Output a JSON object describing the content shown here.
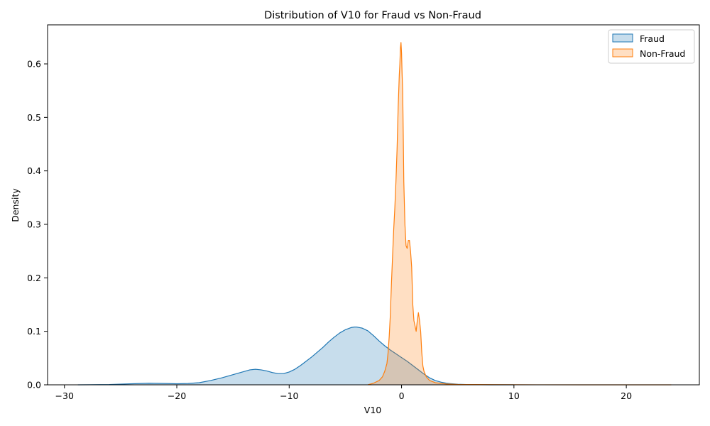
{
  "chart_data": {
    "type": "area",
    "title": "Distribution of V10 for Fraud vs Non-Fraud",
    "xlabel": "V10",
    "ylabel": "Density",
    "xlim": [
      -31.5,
      26.5
    ],
    "ylim": [
      0,
      0.673
    ],
    "xticks": [
      -30,
      -20,
      -10,
      0,
      10,
      20
    ],
    "yticks": [
      0.0,
      0.1,
      0.2,
      0.3,
      0.4,
      0.5,
      0.6
    ],
    "legend_position": "top-right",
    "grid": false,
    "series": [
      {
        "name": "Fraud",
        "color": "#1f77b4",
        "x": [
          -28.8,
          -26,
          -24,
          -22.5,
          -21,
          -20,
          -19,
          -18,
          -17,
          -16,
          -15,
          -14,
          -13.5,
          -13,
          -12.5,
          -12,
          -11.5,
          -11,
          -10.5,
          -10,
          -9.5,
          -9,
          -8.5,
          -8,
          -7.5,
          -7,
          -6.5,
          -6,
          -5.5,
          -5,
          -4.5,
          -4.2,
          -4,
          -3.5,
          -3,
          -2.5,
          -2,
          -1.5,
          -1,
          -0.5,
          0,
          0.5,
          1,
          1.5,
          2,
          2.5,
          3,
          3.5,
          4,
          5,
          6,
          8,
          10
        ],
        "y": [
          0.0,
          0.0005,
          0.002,
          0.003,
          0.0025,
          0.002,
          0.0025,
          0.004,
          0.008,
          0.013,
          0.019,
          0.025,
          0.028,
          0.029,
          0.028,
          0.026,
          0.023,
          0.021,
          0.021,
          0.024,
          0.029,
          0.036,
          0.044,
          0.052,
          0.061,
          0.07,
          0.08,
          0.089,
          0.097,
          0.103,
          0.107,
          0.108,
          0.108,
          0.106,
          0.101,
          0.092,
          0.082,
          0.073,
          0.065,
          0.058,
          0.051,
          0.044,
          0.036,
          0.028,
          0.02,
          0.013,
          0.008,
          0.005,
          0.003,
          0.001,
          0.0003,
          0.0,
          0.0
        ]
      },
      {
        "name": "Non-Fraud",
        "color": "#ff7f0e",
        "x": [
          -3,
          -2.5,
          -2,
          -1.7,
          -1.5,
          -1.3,
          -1.2,
          -1.1,
          -1.0,
          -0.9,
          -0.8,
          -0.7,
          -0.6,
          -0.5,
          -0.4,
          -0.3,
          -0.2,
          -0.15,
          -0.1,
          -0.05,
          0,
          0.05,
          0.1,
          0.15,
          0.2,
          0.3,
          0.4,
          0.5,
          0.6,
          0.7,
          0.8,
          0.9,
          1.0,
          1.1,
          1.2,
          1.3,
          1.4,
          1.5,
          1.6,
          1.7,
          1.8,
          1.9,
          2.0,
          2.2,
          2.5,
          3,
          4,
          5,
          8,
          12,
          16,
          20,
          24
        ],
        "y": [
          0.0,
          0.003,
          0.008,
          0.015,
          0.025,
          0.04,
          0.06,
          0.09,
          0.13,
          0.19,
          0.24,
          0.29,
          0.33,
          0.38,
          0.44,
          0.52,
          0.58,
          0.6,
          0.63,
          0.64,
          0.62,
          0.58,
          0.55,
          0.47,
          0.38,
          0.3,
          0.26,
          0.255,
          0.27,
          0.27,
          0.25,
          0.22,
          0.15,
          0.12,
          0.11,
          0.1,
          0.12,
          0.135,
          0.12,
          0.1,
          0.06,
          0.035,
          0.025,
          0.015,
          0.008,
          0.004,
          0.0015,
          0.0007,
          0.0003,
          0.0001,
          0.0,
          0.0,
          0.0
        ]
      }
    ]
  }
}
